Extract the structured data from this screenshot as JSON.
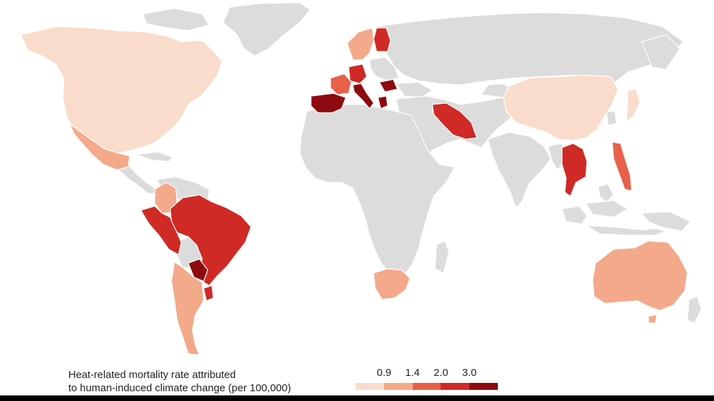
{
  "legend": {
    "title_line1": "Heat-related mortality rate attributed",
    "title_line2": "to human-induced climate change (per 100,000)",
    "ticks": [
      "0.9",
      "1.4",
      "2.0",
      "3.0"
    ],
    "colors": [
      "#f9dccb",
      "#f3a98a",
      "#e8604a",
      "#cf2a26",
      "#8e0a0f"
    ]
  },
  "map": {
    "no_data_color": "#dcdcdc",
    "regions": [
      {
        "name": "North America (Canada/USA)",
        "level": 1
      },
      {
        "name": "Mexico",
        "level": 2
      },
      {
        "name": "Central America",
        "level": 0
      },
      {
        "name": "Colombia",
        "level": 2
      },
      {
        "name": "Peru / Ecuador",
        "level": 4
      },
      {
        "name": "Brazil",
        "level": 4
      },
      {
        "name": "Bolivia",
        "level": 0
      },
      {
        "name": "Paraguay",
        "level": 5
      },
      {
        "name": "Uruguay",
        "level": 4
      },
      {
        "name": "Chile / Argentina",
        "level": 2
      },
      {
        "name": "Spain / Portugal",
        "level": 5
      },
      {
        "name": "France",
        "level": 3
      },
      {
        "name": "Italy",
        "level": 5
      },
      {
        "name": "Germany",
        "level": 4
      },
      {
        "name": "Greece",
        "level": 5
      },
      {
        "name": "Romania",
        "level": 5
      },
      {
        "name": "Finland",
        "level": 4
      },
      {
        "name": "Scandinavia",
        "level": 2
      },
      {
        "name": "Iran",
        "level": 4
      },
      {
        "name": "China",
        "level": 1
      },
      {
        "name": "Japan",
        "level": 1
      },
      {
        "name": "Thailand / Vietnam",
        "level": 4
      },
      {
        "name": "Philippines",
        "level": 3
      },
      {
        "name": "South Africa",
        "level": 2
      },
      {
        "name": "Australia",
        "level": 2
      }
    ]
  }
}
